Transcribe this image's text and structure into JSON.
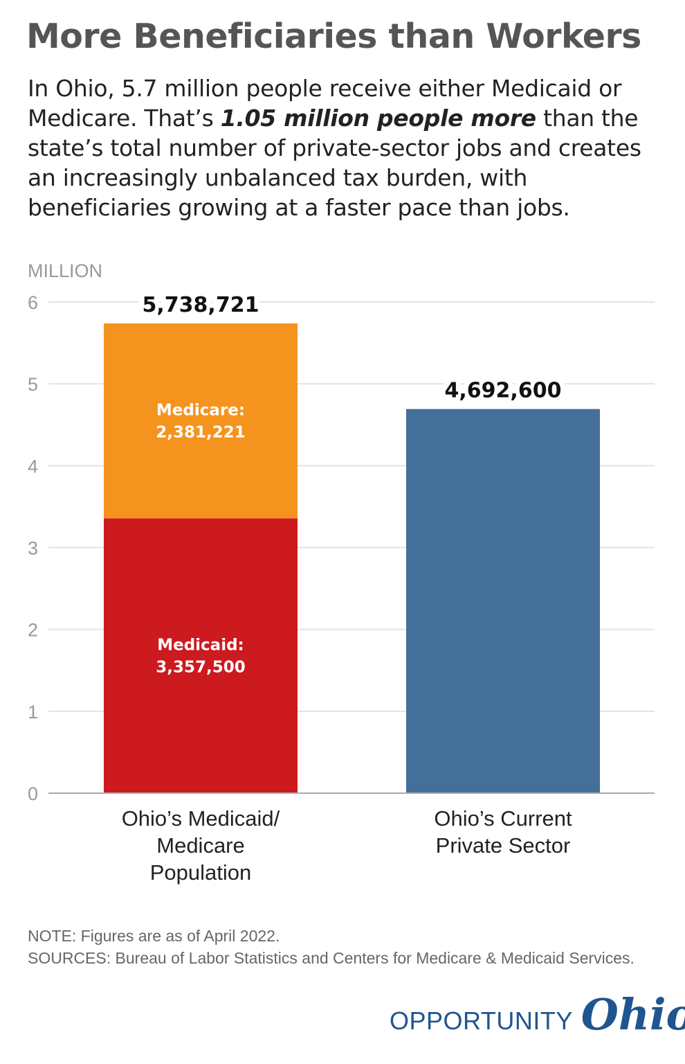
{
  "title": "More Beneficiaries than Workers",
  "subtitle": {
    "pre": "In Ohio, 5.7 million people receive either Medicaid or Medicare. That’s ",
    "bold": "1.05 million people more",
    "post": " than the state’s total number of private-sector jobs and creates an increasingly unbalanced tax burden, with beneficiaries growing at a faster pace than jobs."
  },
  "chart_data": {
    "type": "bar",
    "stacked": true,
    "ylabel": "MILLION",
    "ylim": [
      0,
      6
    ],
    "yticks": [
      "0",
      "1",
      "2",
      "3",
      "4",
      "5",
      "6"
    ],
    "grid": true,
    "categories": [
      "Ohio’s Medicaid/ Medicare Population",
      "Ohio’s Current Private Sector"
    ],
    "category_lines": [
      [
        "Ohio’s Medicaid/",
        "Medicare",
        "Population"
      ],
      [
        "Ohio’s Current",
        "Private Sector"
      ]
    ],
    "segments": [
      {
        "category": 0,
        "name": "Medicaid:",
        "value": 3357500,
        "label": "3,357,500",
        "color": "#cc1a1f"
      },
      {
        "category": 0,
        "name": "Medicare:",
        "value": 2381221,
        "label": "2,381,221",
        "color": "#f5931f"
      },
      {
        "category": 1,
        "name": "",
        "value": 4692600,
        "label": "",
        "color": "#446f99"
      }
    ],
    "totals": [
      {
        "value": 5738721,
        "label": "5,738,721"
      },
      {
        "value": 4692600,
        "label": "4,692,600"
      }
    ]
  },
  "note": "NOTE: Figures are as of April 2022.",
  "sources": "SOURCES: Bureau of Labor Statistics and Centers for Medicare & Medicaid Services.",
  "logo": {
    "text1": "OPPORTUNITY",
    "text2": "Ohio",
    "color": "#1f5590"
  }
}
